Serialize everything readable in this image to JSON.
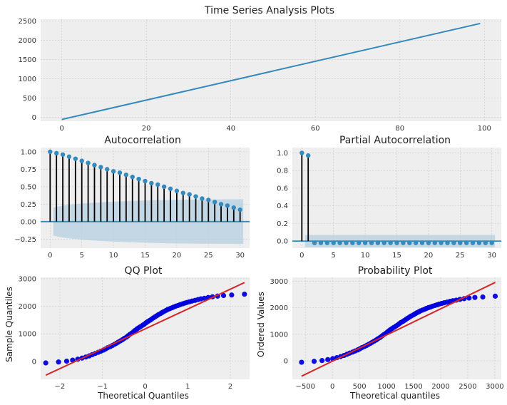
{
  "figure": {
    "title": "Time Series Analysis Plots",
    "background": "#ffffff",
    "axes_facecolor": "#eeeeee",
    "grid_color": "#c8c8c8",
    "line_color": "#348abd",
    "marker_color": "#348abd",
    "confint_color": "#b6cfe0",
    "qq_marker_color": "#0000dd",
    "ref_line_color": "#d62728"
  },
  "chart_data": [
    {
      "id": "ts",
      "type": "line",
      "title": "Time Series Analysis Plots",
      "xlabel": "",
      "ylabel": "",
      "xlim": [
        -5,
        104
      ],
      "ylim": [
        -100,
        2550
      ],
      "xticks": [
        0,
        20,
        40,
        60,
        80,
        100
      ],
      "yticks": [
        0,
        500,
        1000,
        1500,
        2000,
        2500
      ],
      "x": [
        0,
        99
      ],
      "y": [
        -55,
        2440
      ]
    },
    {
      "id": "acf",
      "type": "stem",
      "title": "Autocorrelation",
      "xlabel": "",
      "ylabel": "",
      "xlim": [
        -1.5,
        31.5
      ],
      "ylim": [
        -0.38,
        1.06
      ],
      "xticks": [
        0,
        5,
        10,
        15,
        20,
        25,
        30
      ],
      "yticks": [
        -0.25,
        0.0,
        0.25,
        0.5,
        0.75,
        1.0
      ],
      "ytick_labels": [
        "−0.25",
        "0.00",
        "0.25",
        "0.50",
        "0.75",
        "1.00"
      ],
      "lags": [
        0,
        1,
        2,
        3,
        4,
        5,
        6,
        7,
        8,
        9,
        10,
        11,
        12,
        13,
        14,
        15,
        16,
        17,
        18,
        19,
        20,
        21,
        22,
        23,
        24,
        25,
        26,
        27,
        28,
        29,
        30
      ],
      "values": [
        1.0,
        0.98,
        0.96,
        0.93,
        0.9,
        0.87,
        0.84,
        0.81,
        0.78,
        0.75,
        0.72,
        0.7,
        0.67,
        0.64,
        0.61,
        0.58,
        0.55,
        0.53,
        0.5,
        0.47,
        0.44,
        0.41,
        0.39,
        0.36,
        0.33,
        0.31,
        0.28,
        0.25,
        0.23,
        0.2,
        0.17
      ],
      "confint_upper": [
        0.2,
        0.2,
        0.22,
        0.235,
        0.245,
        0.255,
        0.262,
        0.268,
        0.274,
        0.279,
        0.284,
        0.288,
        0.292,
        0.295,
        0.298,
        0.301,
        0.304,
        0.306,
        0.308,
        0.31,
        0.312,
        0.313,
        0.314,
        0.315,
        0.316,
        0.317,
        0.318,
        0.318,
        0.319,
        0.319,
        0.32
      ]
    },
    {
      "id": "pacf",
      "type": "stem",
      "title": "Partial Autocorrelation",
      "xlabel": "",
      "ylabel": "",
      "xlim": [
        -1.5,
        31.5
      ],
      "ylim": [
        -0.08,
        1.06
      ],
      "xticks": [
        0,
        5,
        10,
        15,
        20,
        25,
        30
      ],
      "yticks": [
        0.0,
        0.2,
        0.4,
        0.6,
        0.8,
        1.0
      ],
      "ytick_labels": [
        "0.0",
        "0.2",
        "0.4",
        "0.6",
        "0.8",
        "1.0"
      ],
      "lags": [
        0,
        1,
        2,
        3,
        4,
        5,
        6,
        7,
        8,
        9,
        10,
        11,
        12,
        13,
        14,
        15,
        16,
        17,
        18,
        19,
        20,
        21,
        22,
        23,
        24,
        25,
        26,
        27,
        28,
        29,
        30
      ],
      "values": [
        1.0,
        0.97,
        -0.02,
        -0.02,
        -0.02,
        -0.02,
        -0.02,
        -0.02,
        -0.02,
        -0.02,
        -0.02,
        -0.02,
        -0.02,
        -0.02,
        -0.02,
        -0.02,
        -0.02,
        -0.02,
        -0.02,
        -0.02,
        -0.02,
        -0.02,
        -0.02,
        -0.02,
        -0.02,
        -0.02,
        -0.02,
        -0.02,
        -0.02,
        -0.02,
        -0.02
      ],
      "confint": 0.07
    },
    {
      "id": "qq",
      "type": "scatter",
      "title": "QQ Plot",
      "xlabel": "Theoretical Quantiles",
      "ylabel": "Sample Quantiles",
      "xlim": [
        -2.45,
        2.45
      ],
      "ylim": [
        -650,
        3050
      ],
      "xticks": [
        -2,
        -1,
        0,
        1,
        2
      ],
      "xtick_labels": [
        "−2",
        "−1",
        "0",
        "1",
        "2"
      ],
      "yticks": [
        0,
        1000,
        2000,
        3000
      ],
      "x": [
        -2.33,
        -2.03,
        -1.84,
        -1.7,
        -1.58,
        -1.48,
        -1.39,
        -1.31,
        -1.24,
        -1.17,
        -1.1,
        -1.04,
        -0.98,
        -0.93,
        -0.88,
        -0.82,
        -0.77,
        -0.72,
        -0.67,
        -0.63,
        -0.58,
        -0.53,
        -0.49,
        -0.44,
        -0.4,
        -0.36,
        -0.31,
        -0.27,
        -0.23,
        -0.19,
        -0.15,
        -0.11,
        -0.06,
        -0.02,
        0.02,
        0.06,
        0.11,
        0.15,
        0.19,
        0.23,
        0.27,
        0.31,
        0.36,
        0.4,
        0.44,
        0.49,
        0.53,
        0.58,
        0.63,
        0.67,
        0.72,
        0.77,
        0.82,
        0.88,
        0.93,
        0.98,
        1.04,
        1.1,
        1.17,
        1.24,
        1.31,
        1.39,
        1.48,
        1.58,
        1.7,
        1.84,
        2.03,
        2.33
      ],
      "y": [
        -55,
        -20,
        10,
        45,
        80,
        120,
        160,
        200,
        245,
        290,
        330,
        370,
        410,
        450,
        495,
        535,
        575,
        620,
        660,
        700,
        745,
        790,
        835,
        880,
        930,
        980,
        1030,
        1080,
        1130,
        1180,
        1220,
        1260,
        1310,
        1350,
        1400,
        1445,
        1490,
        1530,
        1575,
        1615,
        1655,
        1695,
        1735,
        1775,
        1810,
        1850,
        1885,
        1915,
        1945,
        1975,
        2005,
        2030,
        2060,
        2090,
        2115,
        2140,
        2165,
        2190,
        2215,
        2245,
        2270,
        2290,
        2320,
        2345,
        2370,
        2390,
        2410,
        2440
      ],
      "ref_line": {
        "x": [
          -2.33,
          2.33
        ],
        "y": [
          -500,
          2860
        ]
      }
    },
    {
      "id": "prob",
      "type": "scatter",
      "title": "Probability Plot",
      "xlabel": "Theoretical quantiles",
      "ylabel": "Ordered Values",
      "xlim": [
        -740,
        3120
      ],
      "ylim": [
        -700,
        3150
      ],
      "xticks": [
        -500,
        0,
        500,
        1000,
        1500,
        2000,
        2500,
        3000
      ],
      "xtick_labels": [
        "−500",
        "0",
        "500",
        "1000",
        "1500",
        "2000",
        "2500",
        "3000"
      ],
      "yticks": [
        0,
        1000,
        2000,
        3000
      ],
      "x": [
        -570,
        -338,
        -192,
        -85,
        6,
        82,
        151,
        212,
        266,
        320,
        374,
        420,
        466,
        504,
        543,
        589,
        627,
        666,
        704,
        735,
        774,
        812,
        843,
        881,
        912,
        943,
        981,
        1012,
        1043,
        1073,
        1104,
        1135,
        1173,
        1204,
        1235,
        1265,
        1304,
        1335,
        1365,
        1396,
        1427,
        1457,
        1496,
        1527,
        1557,
        1596,
        1627,
        1665,
        1703,
        1734,
        1772,
        1811,
        1849,
        1895,
        1934,
        1972,
        2018,
        2064,
        2118,
        2172,
        2226,
        2287,
        2356,
        2433,
        2525,
        2632,
        2778,
        3008
      ],
      "y": [
        -55,
        -20,
        10,
        45,
        80,
        120,
        160,
        200,
        245,
        290,
        330,
        370,
        410,
        450,
        495,
        535,
        575,
        620,
        660,
        700,
        745,
        790,
        835,
        880,
        930,
        980,
        1030,
        1080,
        1130,
        1180,
        1220,
        1260,
        1310,
        1350,
        1400,
        1445,
        1490,
        1530,
        1575,
        1615,
        1655,
        1695,
        1735,
        1775,
        1810,
        1850,
        1885,
        1915,
        1945,
        1975,
        2005,
        2030,
        2060,
        2090,
        2115,
        2140,
        2165,
        2190,
        2215,
        2245,
        2270,
        2290,
        2320,
        2345,
        2370,
        2390,
        2410,
        2440
      ],
      "ref_line": {
        "x": [
          -570,
          3008
        ],
        "y": [
          -580,
          2960
        ]
      }
    }
  ]
}
